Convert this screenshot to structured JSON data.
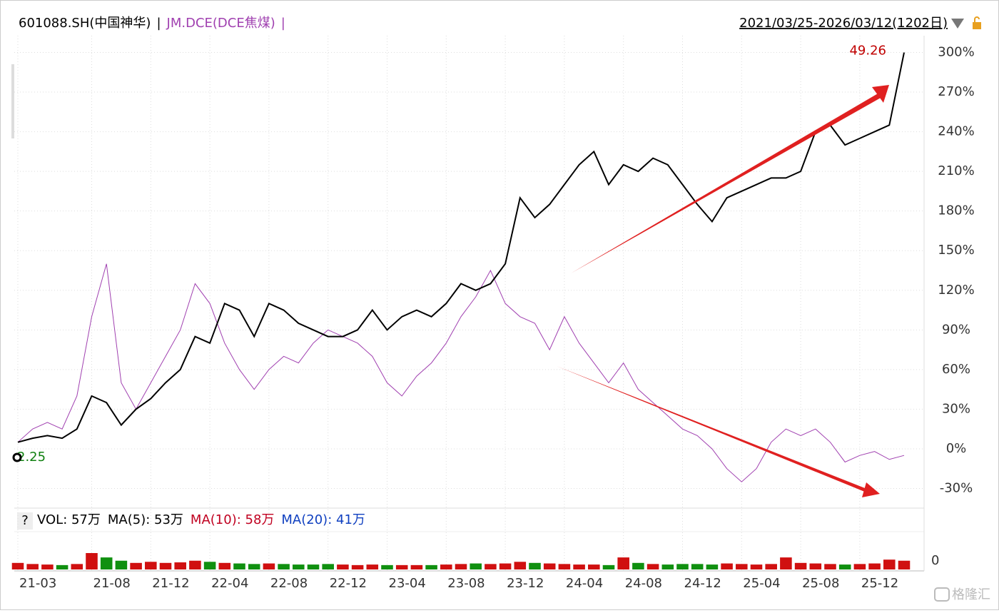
{
  "chart_data": [
    {
      "type": "line",
      "title": "601088.SH(中国神华)",
      "separator": "|",
      "date_range": "2021/03/25-2026/03/12(1202日)",
      "categories": [
        "21-03",
        null,
        null,
        null,
        null,
        "21-08",
        null,
        null,
        null,
        "21-12",
        null,
        null,
        null,
        "22-04",
        null,
        null,
        null,
        "22-08",
        null,
        null,
        null,
        "22-12",
        null,
        null,
        null,
        "23-04",
        null,
        null,
        null,
        "23-08",
        null,
        null,
        null,
        "23-12",
        null,
        null,
        null,
        "24-04",
        null,
        null,
        null,
        "24-08",
        null,
        null,
        null,
        "24-12",
        null,
        null,
        null,
        "25-04",
        null,
        null,
        null,
        "25-08",
        null,
        null,
        null,
        "25-12",
        null,
        null,
        null
      ],
      "series": [
        {
          "name": "601088.SH(中国神华)",
          "color": "#000000",
          "values": [
            5,
            8,
            10,
            8,
            15,
            40,
            35,
            18,
            30,
            38,
            50,
            60,
            85,
            80,
            110,
            105,
            85,
            110,
            105,
            95,
            90,
            85,
            85,
            90,
            105,
            90,
            100,
            105,
            100,
            110,
            125,
            120,
            125,
            140,
            190,
            175,
            185,
            200,
            215,
            225,
            200,
            215,
            210,
            220,
            215,
            200,
            185,
            172,
            190,
            195,
            200,
            205,
            205,
            210,
            240,
            245,
            230,
            235,
            240,
            245,
            300
          ]
        },
        {
          "name": "JM.DCE(DCE焦煤)",
          "color": "#a040b0",
          "values": [
            5,
            15,
            20,
            15,
            40,
            100,
            140,
            50,
            30,
            50,
            70,
            90,
            125,
            110,
            80,
            60,
            45,
            60,
            70,
            65,
            80,
            90,
            85,
            80,
            70,
            50,
            40,
            55,
            65,
            80,
            100,
            115,
            135,
            110,
            100,
            95,
            75,
            100,
            80,
            65,
            50,
            65,
            45,
            35,
            25,
            15,
            10,
            0,
            -15,
            -25,
            -15,
            5,
            15,
            10,
            15,
            5,
            -10,
            -5,
            -2,
            -8,
            -5
          ]
        }
      ],
      "ylim": [
        -40,
        310
      ],
      "yticks": [
        {
          "value": -30,
          "label": "-30%"
        },
        {
          "value": 0,
          "label": "0%"
        },
        {
          "value": 30,
          "label": "30%"
        },
        {
          "value": 60,
          "label": "60%"
        },
        {
          "value": 90,
          "label": "90%"
        },
        {
          "value": 120,
          "label": "120%"
        },
        {
          "value": 150,
          "label": "150%"
        },
        {
          "value": 180,
          "label": "180%"
        },
        {
          "value": 210,
          "label": "210%"
        },
        {
          "value": 240,
          "label": "240%"
        },
        {
          "value": 270,
          "label": "270%"
        },
        {
          "value": 300,
          "label": "300%"
        }
      ],
      "grid": true,
      "high_label": "49.26",
      "low_label": "2.25"
    },
    {
      "type": "bar",
      "help": "?",
      "legend": [
        "VOL: 57万",
        "MA(5): 53万",
        "MA(10): 58万",
        "MA(20): 41万"
      ],
      "legend_colors": [
        "#000000",
        "#000000",
        "#c00020",
        "#1040c0"
      ],
      "values": [
        60,
        50,
        45,
        40,
        50,
        150,
        110,
        80,
        60,
        70,
        60,
        65,
        80,
        70,
        60,
        55,
        50,
        55,
        50,
        45,
        45,
        50,
        45,
        40,
        45,
        40,
        40,
        40,
        40,
        45,
        50,
        55,
        50,
        55,
        70,
        60,
        55,
        50,
        45,
        45,
        40,
        110,
        60,
        50,
        45,
        50,
        50,
        45,
        55,
        50,
        45,
        50,
        110,
        60,
        55,
        50,
        45,
        50,
        55,
        90,
        80
      ],
      "ylim": [
        0,
        300
      ],
      "yticks": [
        0
      ]
    },
    {
      "type": "watermark",
      "text": "格隆汇"
    }
  ]
}
